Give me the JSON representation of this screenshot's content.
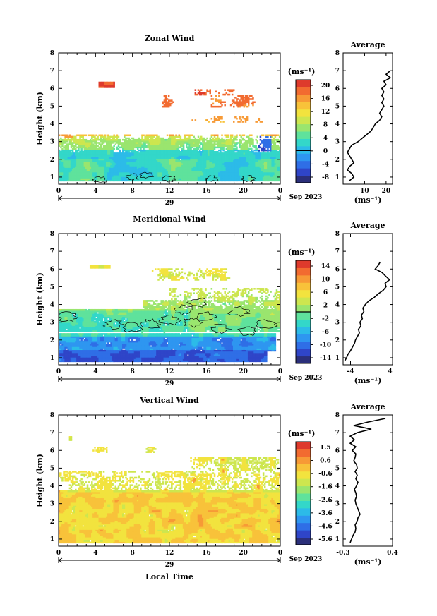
{
  "x_ticks": [
    "0",
    "4",
    "8",
    "12",
    "16",
    "20",
    "0"
  ],
  "y_ticks": [
    "1",
    "2",
    "3",
    "4",
    "5",
    "6",
    "7",
    "8"
  ],
  "date_label": "Sep 2023",
  "day_label": "29",
  "xlabel": "Local Time",
  "ylabel": "Height (km)",
  "unit_label": "(ms⁻¹)",
  "avg_title": "Average",
  "colors": [
    "#2b2f7a",
    "#2f45c8",
    "#2f6ee6",
    "#2e96f0",
    "#2cbbe8",
    "#33d7c9",
    "#5fe29c",
    "#9ae56e",
    "#cde64f",
    "#f2e33e",
    "#f8c23a",
    "#f79a36",
    "#f26b30",
    "#de3a2c"
  ],
  "chart_data": [
    {
      "type": "heatmap",
      "title": "Zonal Wind",
      "colorbar_ticks": [
        "20",
        "16",
        "12",
        "8",
        "4",
        "0",
        "-4",
        "-8"
      ],
      "colorbar_range": [
        -10,
        22
      ],
      "zero_line": 0,
      "xlim": [
        0,
        24
      ],
      "ylim": [
        0.6,
        8
      ],
      "avg_profile": {
        "xlabel": "(ms⁻¹)",
        "xticks": [
          "10",
          "20"
        ],
        "xlim": [
          0,
          23
        ],
        "heights": [
          0.8,
          1.0,
          1.2,
          1.4,
          1.6,
          1.8,
          2.0,
          2.2,
          2.4,
          2.6,
          2.8,
          3.0,
          3.2,
          3.4,
          3.6,
          3.8,
          4.0,
          4.2,
          4.4,
          4.6,
          4.8,
          5.0,
          5.2,
          5.4,
          5.6,
          5.8,
          6.0,
          6.2,
          6.4,
          6.6,
          6.8,
          7.0
        ],
        "values": [
          3,
          5,
          4,
          2,
          3,
          5,
          4,
          3,
          2,
          3,
          4,
          7,
          9,
          11,
          13,
          14,
          15,
          17,
          18,
          17,
          18,
          19,
          18,
          19,
          18,
          19,
          18,
          20,
          19,
          22,
          20,
          22
        ]
      }
    },
    {
      "type": "heatmap",
      "title": "Meridional Wind",
      "colorbar_ticks": [
        "14",
        "10",
        "6",
        "2",
        "-2",
        "-6",
        "-10",
        "-14"
      ],
      "colorbar_range": [
        -16,
        16
      ],
      "zero_line": 0,
      "xlim": [
        0,
        24
      ],
      "ylim": [
        0.6,
        8
      ],
      "avg_profile": {
        "xlabel": "(ms⁻¹)",
        "xticks": [
          "-4",
          "4"
        ],
        "xlim": [
          -5.5,
          4.5
        ],
        "heights": [
          0.8,
          1.0,
          1.2,
          1.4,
          1.6,
          1.8,
          2.0,
          2.2,
          2.4,
          2.6,
          2.8,
          3.0,
          3.2,
          3.4,
          3.6,
          3.8,
          4.0,
          4.2,
          4.4,
          4.6,
          4.8,
          5.0,
          5.2,
          5.4,
          5.6,
          5.8,
          6.0,
          6.2,
          6.4
        ],
        "values": [
          -5.2,
          -4.8,
          -4.5,
          -4.0,
          -3.6,
          -3.2,
          -3.0,
          -2.6,
          -2.2,
          -2.4,
          -1.9,
          -2.1,
          -1.6,
          -1.8,
          -1.3,
          -1.5,
          -1.0,
          -0.3,
          0.8,
          1.6,
          2.6,
          3.2,
          3.0,
          3.9,
          3.1,
          2.4,
          1.0,
          1.6,
          2.0
        ]
      }
    },
    {
      "type": "heatmap",
      "title": "Vertical Wind",
      "colorbar_ticks": [
        "1.5",
        "0.6",
        "-0.6",
        "-1.6",
        "-2.6",
        "-3.6",
        "-4.6",
        "-5.6"
      ],
      "colorbar_range": [
        -6,
        2
      ],
      "zero_line": null,
      "xlim": [
        0,
        24
      ],
      "ylim": [
        0.6,
        8
      ],
      "avg_profile": {
        "xlabel": "(ms⁻¹)",
        "xticks": [
          "-0.3",
          "0.4"
        ],
        "xlim": [
          -0.3,
          0.4
        ],
        "heights": [
          0.8,
          1.0,
          1.2,
          1.4,
          1.6,
          1.8,
          2.0,
          2.2,
          2.4,
          2.6,
          2.8,
          3.0,
          3.2,
          3.4,
          3.6,
          3.8,
          4.0,
          4.2,
          4.4,
          4.6,
          4.8,
          5.0,
          5.2,
          5.4,
          5.6,
          5.8,
          6.0,
          6.2,
          6.4,
          6.6,
          6.8,
          7.0,
          7.2,
          7.4,
          7.6,
          7.8
        ],
        "values": [
          -0.2,
          -0.18,
          -0.16,
          -0.13,
          -0.12,
          -0.13,
          -0.1,
          -0.09,
          -0.06,
          -0.08,
          -0.1,
          -0.12,
          -0.13,
          -0.11,
          -0.12,
          -0.14,
          -0.11,
          -0.09,
          -0.12,
          -0.1,
          -0.13,
          -0.1,
          -0.11,
          -0.15,
          -0.13,
          -0.12,
          -0.17,
          -0.12,
          -0.2,
          -0.14,
          -0.2,
          -0.1,
          0.1,
          -0.15,
          0.05,
          0.3
        ]
      }
    }
  ]
}
